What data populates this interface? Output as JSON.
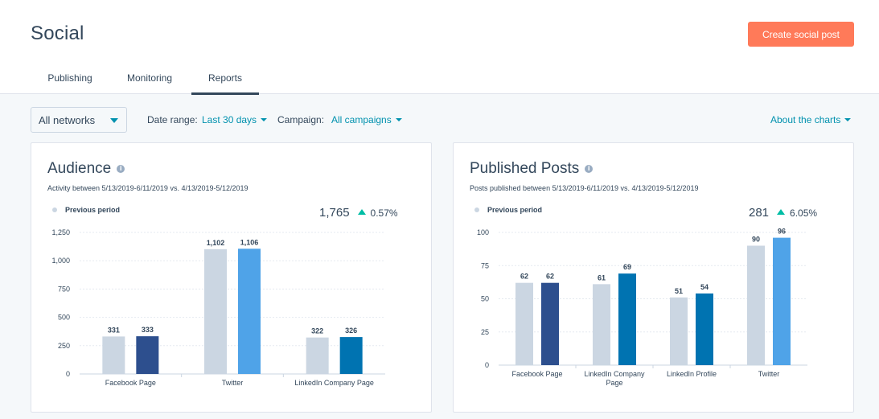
{
  "header": {
    "title": "Social",
    "create_button": "Create social post"
  },
  "tabs": [
    {
      "label": "Publishing"
    },
    {
      "label": "Monitoring"
    },
    {
      "label": "Reports",
      "active": true
    }
  ],
  "filters": {
    "network": "All networks",
    "date_range_label": "Date range:",
    "date_range_value": "Last 30 days",
    "campaign_label": "Campaign:",
    "campaign_value": "All campaigns",
    "about": "About the charts"
  },
  "colors": {
    "accent_button": "#ff7a59",
    "link": "#0091ae",
    "previous_period": "#cbd6e2",
    "facebook": "#2d4f8e",
    "twitter": "#4fa3e8",
    "linkedin": "#0073b1",
    "positive_change": "#00bda5"
  },
  "cards": {
    "audience": {
      "title": "Audience",
      "subtitle": "Activity between 5/13/2019-6/11/2019 vs. 4/13/2019-5/12/2019",
      "legend": "Previous period",
      "total": "1,765",
      "change": "0.57%"
    },
    "published": {
      "title": "Published Posts",
      "subtitle": "Posts published between 5/13/2019-6/11/2019 vs. 4/13/2019-5/12/2019",
      "legend": "Previous period",
      "total": "281",
      "change": "6.05%"
    }
  },
  "chart_data": [
    {
      "type": "bar",
      "title": "Audience",
      "categories": [
        "Facebook Page",
        "Twitter",
        "LinkedIn Company Page"
      ],
      "series": [
        {
          "name": "Previous period",
          "values": [
            331,
            1102,
            322
          ]
        },
        {
          "values": [
            333,
            1106,
            326
          ]
        }
      ],
      "current_colors": [
        "#2d4f8e",
        "#4fa3e8",
        "#0073b1"
      ],
      "ylim": [
        0,
        1250
      ],
      "yticks": [
        0,
        250,
        500,
        750,
        1000,
        1250
      ],
      "grid": true,
      "legend_position": "top-left"
    },
    {
      "type": "bar",
      "title": "Published Posts",
      "categories": [
        "Facebook Page",
        "LinkedIn Company Page",
        "LinkedIn Profile",
        "Twitter"
      ],
      "series": [
        {
          "name": "Previous period",
          "values": [
            62,
            61,
            51,
            90
          ]
        },
        {
          "values": [
            62,
            69,
            54,
            96
          ]
        }
      ],
      "current_colors": [
        "#2d4f8e",
        "#0073b1",
        "#0073b1",
        "#4fa3e8"
      ],
      "ylim": [
        0,
        100
      ],
      "yticks": [
        0,
        25,
        50,
        75,
        100
      ],
      "grid": true,
      "legend_position": "top-left"
    }
  ]
}
